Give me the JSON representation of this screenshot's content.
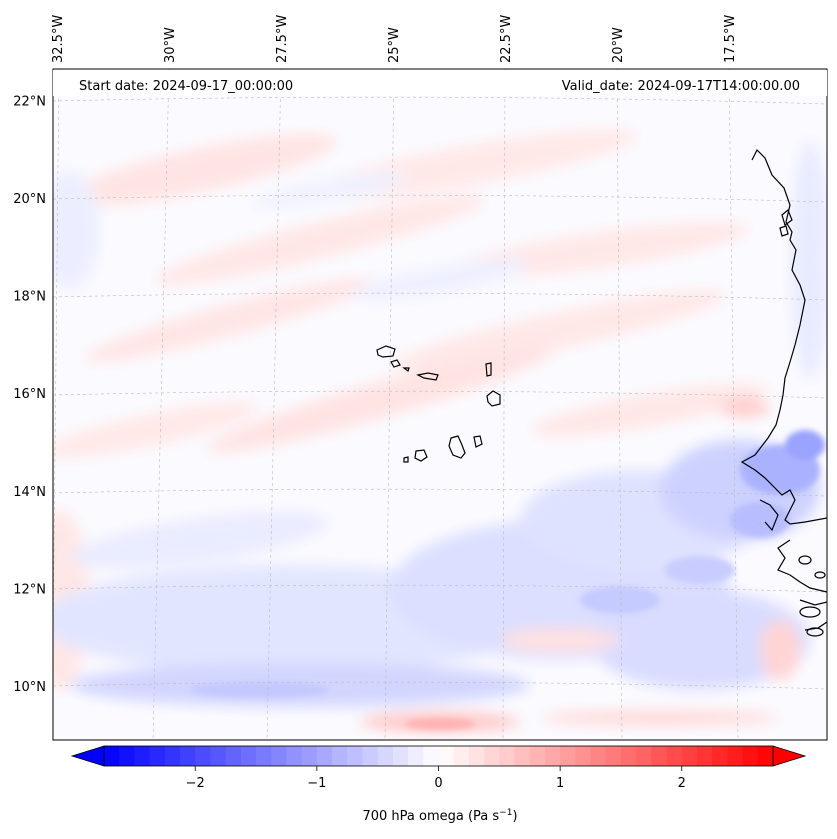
{
  "header": {
    "start_date": "Start date: 2024-09-17_00:00:00",
    "valid_date": "Valid_date: 2024-09-17T14:00:00.00"
  },
  "map": {
    "type": "contourf",
    "projection": "lambert-conformal",
    "variable": "700 hPa omega",
    "lon_ticks": [
      {
        "value": -32.5,
        "label": "32.5°W"
      },
      {
        "value": -30.0,
        "label": "30°W"
      },
      {
        "value": -27.5,
        "label": "27.5°W"
      },
      {
        "value": -25.0,
        "label": "25°W"
      },
      {
        "value": -22.5,
        "label": "22.5°W"
      },
      {
        "value": -20.0,
        "label": "20°W"
      },
      {
        "value": -17.5,
        "label": "17.5°W"
      }
    ],
    "lat_ticks": [
      {
        "value": 22,
        "label": "22°N"
      },
      {
        "value": 20,
        "label": "20°N"
      },
      {
        "value": 18,
        "label": "18°N"
      },
      {
        "value": 16,
        "label": "16°N"
      },
      {
        "value": 14,
        "label": "14°N"
      },
      {
        "value": 12,
        "label": "12°N"
      },
      {
        "value": 10,
        "label": "10°N"
      }
    ],
    "gridlines": true,
    "coastlines": true,
    "features": [
      "cape-verde-islands",
      "west-africa-coast"
    ]
  },
  "colorbar": {
    "label_prefix": "700 hPa omega (Pa s",
    "label_exp": "−1",
    "label_suffix": ")",
    "min": -2.75,
    "max": 2.75,
    "extend": "both",
    "cmap": "bwr",
    "color_low": "#0000ff",
    "color_mid": "#ffffff",
    "color_high": "#ff0000",
    "ticks": [
      {
        "value": -2,
        "label": "−2"
      },
      {
        "value": -1,
        "label": "−1"
      },
      {
        "value": 0,
        "label": "0"
      },
      {
        "value": 1,
        "label": "1"
      },
      {
        "value": 2,
        "label": "2"
      }
    ]
  }
}
